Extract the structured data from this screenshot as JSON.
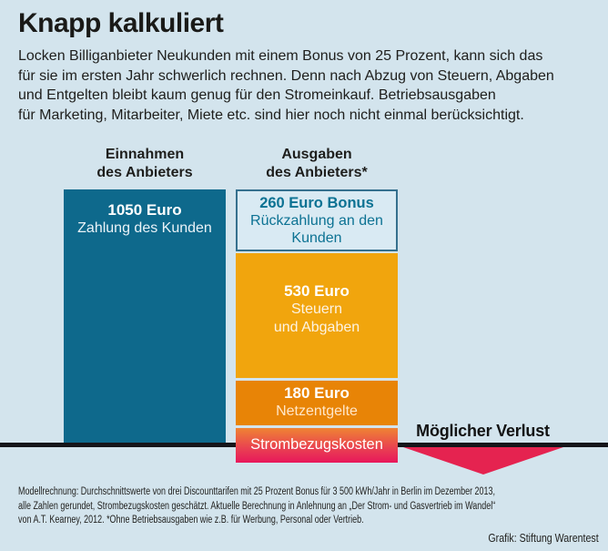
{
  "title": "Knapp kalkuliert",
  "intro": "Locken Billiganbieter Neukunden mit einem Bonus von 25 Prozent, kann sich das\nfür sie im ersten Jahr schwerlich rechnen. Denn nach Abzug von Steuern, Abgaben\nund Entgelten bleibt kaum genug für den Stromeinkauf. Betriebsausgaben\nfür Marketing, Mitarbeiter, Miete etc. sind hier noch nicht einmal berücksichtigt.",
  "headers": {
    "left": "Einnahmen\ndes Anbieters",
    "right": "Ausgaben\ndes Anbieters*"
  },
  "bars": {
    "income": {
      "value": "1050 Euro",
      "label": "Zahlung des Kunden"
    },
    "bonus": {
      "value": "260 Euro Bonus",
      "label": "Rückzahlung an den\nKunden"
    },
    "taxes": {
      "value": "530 Euro",
      "label": "Steuern\nund Abgaben"
    },
    "grid": {
      "value": "180 Euro",
      "label": "Netzentgelte"
    },
    "energy": {
      "label": "Strombezugskosten"
    }
  },
  "loss_label": "Möglicher Verlust",
  "footnote": "Modellrechnung: Durchschnittswerte von drei Discounttarifen mit 25 Prozent Bonus für 3 500 kWh/Jahr in Berlin im Dezember 2013,\nalle Zahlen gerundet, Strombezugskosten geschätzt. Aktuelle Berechnung in Anlehnung an „Der Strom- und Gasvertrieb im Wandel“\nvon A.T. Kearney, 2012.  *Ohne Betriebsausgaben wie z.B. für Werbung, Personal oder Vertrieb.",
  "credit": "Grafik: Stiftung Warentest",
  "colors": {
    "background": "#d3e4ed",
    "text": "#1e1e1c",
    "income_bar": "#0e698c",
    "bonus_background": "#d9eaf3",
    "bonus_border": "#35708e",
    "bonus_text": "#0c7293",
    "taxes_amber": "#f1a50d",
    "grid_orange": "#e88406",
    "energy_gradient_top": "#ef8333",
    "energy_gradient_bottom": "#e8175b",
    "loss_red": "#e52350",
    "baseline_black": "#15151a"
  },
  "chart_data": {
    "type": "bar",
    "subtype": "stacked-comparison",
    "title": "Knapp kalkuliert",
    "unit": "Euro",
    "categories": [
      "Einnahmen des Anbieters",
      "Ausgaben des Anbieters*"
    ],
    "bars": [
      {
        "category": "Einnahmen des Anbieters",
        "segments": [
          {
            "label": "Zahlung des Kunden",
            "value": 1050,
            "value_label": "1050 Euro",
            "color": "#0e698c"
          }
        ]
      },
      {
        "category": "Ausgaben des Anbieters*",
        "segments": [
          {
            "label": "Rückzahlung an den Kunden (Bonus)",
            "value": 260,
            "value_label": "260 Euro Bonus",
            "color": "#d9eaf3"
          },
          {
            "label": "Steuern und Abgaben",
            "value": 530,
            "value_label": "530 Euro",
            "color": "#f1a50d"
          },
          {
            "label": "Netzentgelte",
            "value": 180,
            "value_label": "180 Euro",
            "color": "#e88406"
          },
          {
            "label": "Strombezugskosten",
            "value": null,
            "value_label": "",
            "color": "#e8175b",
            "note": "geschätzt, kein Betrag angegeben; Segment ragt unter die Einnahmen-Linie (Möglicher Verlust)"
          }
        ]
      }
    ],
    "annotation": "Möglicher Verlust",
    "baseline": "Höhe der Einnahmen (1050 Euro) als schwarze Linie über die gesamte Breite",
    "legend_position": "none",
    "grid": false
  }
}
